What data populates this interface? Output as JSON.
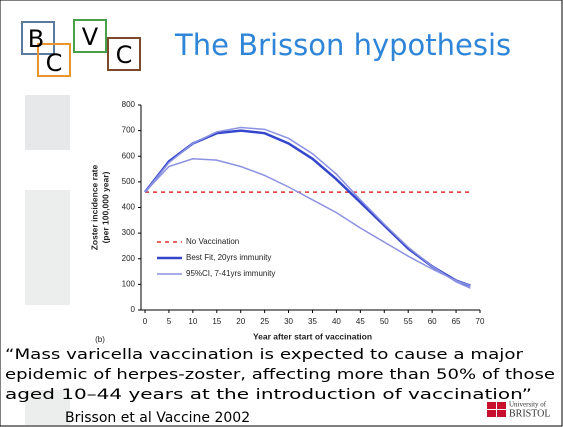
{
  "logo": [
    "B",
    "C",
    "V",
    "C"
  ],
  "title": "The Brisson hypothesis",
  "quote": [
    "“Mass varicella vaccination is expected to cause a major",
    "epidemic of herpes-zoster, affecting more than 50% of those",
    "aged 10–44 years at the introduction of vaccination”"
  ],
  "citation": "Brisson et al Vaccine 2002",
  "university": [
    "University of",
    "BRISTOL"
  ],
  "chart_data": {
    "type": "line",
    "panel_label": "(b)",
    "x_label": "Year after start of vaccination",
    "y_label": [
      "Zoster incidence rate",
      "(per 100,000 year)"
    ],
    "x": [
      0,
      5,
      10,
      15,
      20,
      25,
      30,
      35,
      40,
      45,
      50,
      55,
      60,
      65,
      68
    ],
    "series": [
      {
        "name": "No Vaccination",
        "color": "#e0302a",
        "line_style": "dashed",
        "values": [
          460,
          460,
          460,
          460,
          460,
          460,
          460,
          460,
          460,
          460,
          460,
          460,
          460,
          460,
          460
        ]
      },
      {
        "name": "Best Fit, 20yrs immunity",
        "color": "#3446cc",
        "line_style": "solid",
        "values": [
          460,
          580,
          650,
          690,
          700,
          690,
          650,
          590,
          510,
          420,
          330,
          240,
          170,
          115,
          95
        ]
      },
      {
        "name": "95%CI, 7-41yrs immunity",
        "color": "#8c92e2",
        "line_style": "solid",
        "values": [
          460,
          560,
          590,
          585,
          560,
          525,
          480,
          430,
          380,
          320,
          265,
          210,
          160,
          115,
          95
        ]
      },
      {
        "color": "#8c92e2",
        "line_style": "solid",
        "values": [
          460,
          575,
          650,
          695,
          712,
          705,
          670,
          610,
          530,
          430,
          335,
          245,
          170,
          110,
          85
        ]
      }
    ],
    "xlim": [
      0,
      70
    ],
    "xticks": [
      0,
      5,
      10,
      15,
      20,
      25,
      30,
      35,
      40,
      45,
      50,
      55,
      60,
      65,
      70
    ],
    "ylim": [
      0,
      800
    ],
    "yticks": [
      0,
      100,
      200,
      300,
      400,
      500,
      600,
      700,
      800
    ],
    "grid": false,
    "legend": "lower left"
  }
}
